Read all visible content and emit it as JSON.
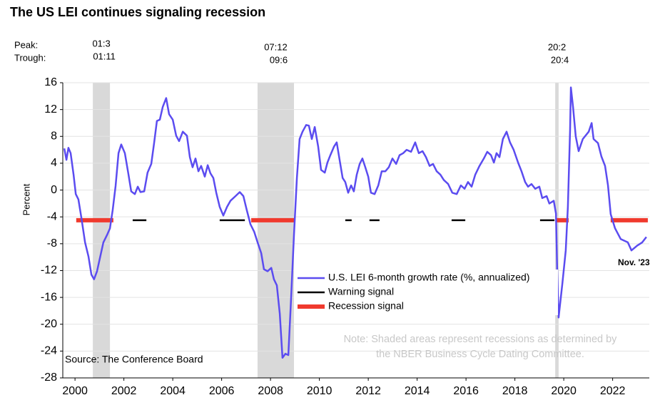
{
  "chart_data": {
    "type": "line",
    "title": "The US LEI continues signaling recession",
    "y_label": "Percent",
    "peak_label": "Peak:",
    "trough_label": "Trough:",
    "xlim": [
      1999.5,
      2023.5
    ],
    "xticks": [
      2000,
      2002,
      2004,
      2006,
      2008,
      2010,
      2012,
      2014,
      2016,
      2018,
      2020,
      2022
    ],
    "ylim": [
      -28,
      16
    ],
    "yticks": [
      -28,
      -24,
      -20,
      -16,
      -12,
      -8,
      -4,
      0,
      4,
      8,
      12,
      16
    ],
    "grid": true,
    "recessions": [
      {
        "peak": "01:3",
        "trough": "01:11",
        "x": [
          2000.73,
          2001.43
        ]
      },
      {
        "peak": "07:12",
        "trough": "09:6",
        "x": [
          2007.47,
          2008.96
        ]
      },
      {
        "peak": "20:2",
        "trough": "20:4",
        "x": [
          2019.65,
          2019.79
        ]
      }
    ],
    "series": [
      {
        "name": "U.S. LEI 6-month growth rate (%, annualized)",
        "color": "#5b4cf0",
        "x": [
          1999.56,
          1999.65,
          1999.73,
          1999.82,
          1999.94,
          2000.03,
          2000.14,
          2000.26,
          2000.41,
          2000.55,
          2000.67,
          2000.78,
          2000.9,
          2001.02,
          2001.16,
          2001.31,
          2001.43,
          2001.54,
          2001.66,
          2001.78,
          2001.89,
          2002.04,
          2002.19,
          2002.3,
          2002.45,
          2002.57,
          2002.68,
          2002.83,
          2002.97,
          2003.12,
          2003.24,
          2003.35,
          2003.47,
          2003.59,
          2003.73,
          2003.85,
          2004.0,
          2004.14,
          2004.26,
          2004.41,
          2004.58,
          2004.7,
          2004.81,
          2004.93,
          2005.05,
          2005.16,
          2005.31,
          2005.43,
          2005.54,
          2005.66,
          2005.78,
          2005.92,
          2006.07,
          2006.22,
          2006.36,
          2006.57,
          2006.74,
          2006.89,
          2007.03,
          2007.18,
          2007.33,
          2007.47,
          2007.62,
          2007.73,
          2007.88,
          2008.03,
          2008.14,
          2008.26,
          2008.38,
          2008.49,
          2008.61,
          2008.73,
          2008.84,
          2008.96,
          2009.08,
          2009.19,
          2009.31,
          2009.46,
          2009.57,
          2009.69,
          2009.81,
          2009.95,
          2010.07,
          2010.22,
          2010.33,
          2010.45,
          2010.6,
          2010.71,
          2010.83,
          2010.95,
          2011.06,
          2011.18,
          2011.3,
          2011.41,
          2011.53,
          2011.65,
          2011.76,
          2011.88,
          2012.0,
          2012.11,
          2012.26,
          2012.41,
          2012.55,
          2012.7,
          2012.84,
          2012.99,
          2013.14,
          2013.28,
          2013.43,
          2013.57,
          2013.75,
          2013.92,
          2014.07,
          2014.22,
          2014.36,
          2014.51,
          2014.65,
          2014.8,
          2014.95,
          2015.09,
          2015.27,
          2015.44,
          2015.62,
          2015.79,
          2015.94,
          2016.08,
          2016.23,
          2016.38,
          2016.55,
          2016.73,
          2016.87,
          2017.02,
          2017.14,
          2017.25,
          2017.37,
          2017.51,
          2017.66,
          2017.8,
          2017.95,
          2018.13,
          2018.27,
          2018.42,
          2018.54,
          2018.68,
          2018.83,
          2019.0,
          2019.12,
          2019.3,
          2019.41,
          2019.59,
          2019.68,
          2019.73,
          2019.79,
          2019.94,
          2020.08,
          2020.17,
          2020.26,
          2020.29,
          2020.38,
          2020.49,
          2020.61,
          2020.78,
          2021.02,
          2021.14,
          2021.22,
          2021.4,
          2021.54,
          2021.69,
          2021.81,
          2021.92,
          2022.1,
          2022.33,
          2022.62,
          2022.77,
          2023.0,
          2023.21,
          2023.38
        ],
        "values": [
          6.2,
          4.5,
          6.3,
          5.5,
          2.3,
          -0.6,
          -1.4,
          -4.1,
          -7.8,
          -9.9,
          -12.6,
          -13.3,
          -12.1,
          -10.1,
          -7.8,
          -6.7,
          -5.7,
          -3,
          0.6,
          5.5,
          6.8,
          5.5,
          2.3,
          -0.2,
          -0.6,
          0.5,
          -0.3,
          -0.2,
          2.6,
          3.9,
          7.1,
          10.3,
          10.5,
          12.4,
          13.7,
          11.3,
          10.5,
          8.1,
          7.3,
          8.7,
          8.1,
          4.9,
          3.4,
          4.7,
          2.8,
          3.6,
          2,
          3.7,
          2.5,
          1.8,
          -0.4,
          -2.5,
          -3.8,
          -2.5,
          -1.6,
          -0.9,
          -0.3,
          -0.9,
          -3,
          -5.1,
          -6.2,
          -7.8,
          -9.4,
          -11.8,
          -12.1,
          -11.6,
          -13.3,
          -14.2,
          -18.4,
          -25,
          -24.4,
          -24.6,
          -16.3,
          -6.7,
          1.8,
          7.6,
          8.7,
          9.7,
          9.6,
          7.6,
          9.4,
          6.5,
          3,
          2.6,
          4.1,
          5.2,
          6.5,
          7.1,
          4.4,
          1.8,
          1.2,
          -0.4,
          0.7,
          -0.2,
          2.3,
          3.9,
          4.7,
          3.4,
          2,
          -0.4,
          -0.6,
          0.7,
          2.8,
          2.8,
          3.4,
          4.7,
          3.9,
          5.2,
          5.5,
          6,
          5.7,
          7.1,
          5.5,
          5.8,
          4.9,
          3.6,
          3.9,
          2.8,
          2.3,
          1.5,
          0.9,
          -0.4,
          -0.6,
          0.7,
          0.2,
          1.2,
          0.5,
          2.3,
          3.6,
          4.7,
          5.7,
          5.2,
          4.1,
          5.5,
          4.9,
          7.6,
          8.7,
          7.1,
          6,
          4.1,
          2.8,
          1.2,
          0.5,
          0.9,
          0.2,
          0.5,
          -1.2,
          -0.9,
          -2,
          -1.6,
          -3.5,
          -12,
          -19,
          -14,
          -9,
          -2.5,
          9,
          15.3,
          12.4,
          8,
          5.8,
          7.6,
          8.7,
          10,
          7.6,
          7,
          5,
          3.6,
          0.7,
          -3.6,
          -5.7,
          -7.3,
          -7.8,
          -9,
          -8.3,
          -7.8,
          -7
        ]
      }
    ],
    "signals": [
      {
        "name": "Warning signal",
        "color": "#000000",
        "level": -4.5,
        "ranges": [
          [
            2002.36,
            2002.92
          ],
          [
            2005.92,
            2006.95
          ],
          [
            2011.06,
            2011.32
          ],
          [
            2012.05,
            2012.46
          ],
          [
            2015.41,
            2015.97
          ],
          [
            2019.03,
            2019.62
          ]
        ]
      },
      {
        "name": "Recession signal",
        "color": "#f03a2e",
        "level": -4.5,
        "ranges": [
          [
            2000.05,
            2001.57
          ],
          [
            2007.21,
            2008.96
          ],
          [
            2019.68,
            2020.2
          ],
          [
            2021.92,
            2023.44
          ]
        ]
      }
    ],
    "annotation": "Nov. '23",
    "source": "Source: The Conference Board",
    "note": [
      "Note: Shaded areas represent recessions as determined by",
      "the NBER Business Cycle Dating Committee."
    ]
  }
}
